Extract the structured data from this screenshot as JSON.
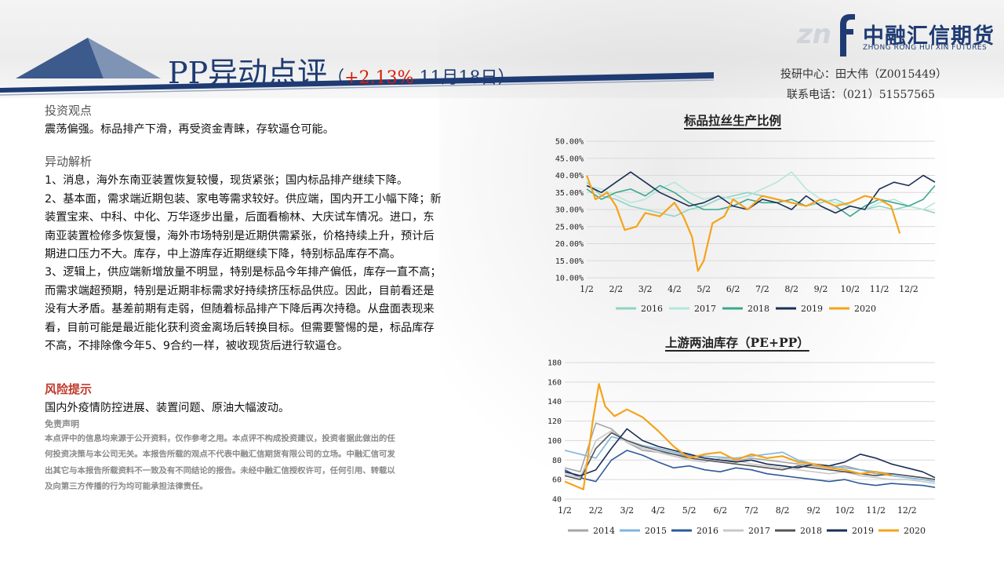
{
  "header": {
    "title_main": "PP异动点评",
    "paren_open": "（",
    "change": "+2.13%",
    "date": "11月18日",
    "paren_close": "）",
    "logo_text": "中融汇信期货",
    "logo_sub": "ZHONG RONG HUI XIN FUTURES",
    "logo_mark": "zn",
    "contact_line1": "投研中心：田大伟（Z0015449）",
    "contact_line2": "联系电话：（021）51557565"
  },
  "colors": {
    "brand": "#1f3b73",
    "accent": "#d81e06",
    "risk": "#c0392b"
  },
  "left": {
    "view_title": "投资观点",
    "view_text": "震荡偏强。标品排产下滑，再受资金青睐，存软逼仓可能。",
    "analysis_title": "异动解析",
    "analysis_lines": [
      "1、消息，海外东南亚装置恢复较慢，现货紧张；国内标品排产继续下降。",
      "2、基本面，需求端近期包装、家电等需求较好。供应端，国内开工小幅下降；新",
      "装置宝来、中科、中化、万华逐步出量，后面看榆林、大庆试车情况。进口，东",
      "南亚装置检修多恢复慢，海外市场特别是近期供需紧张，价格持续上升，预计后",
      "期进口压力不大。库存，中上游库存近期继续下降，特别标品库存不高。",
      "3、逻辑上，供应端新增放量不明显，特别是标品今年排产偏低，库存一直不高；",
      "而需求端超预期，特别是近期非标需求好持续挤压标品供应。因此，目前看还是",
      "没有大矛盾。基差前期有走弱，但随着标品排产下降后再次持稳。从盘面表现来",
      "看，目前可能是最近能化获利资金离场后转换目标。但需要警惕的是，标品库存",
      "不高，不排除像今年5、9合约一样，被收现货后进行软逼仓。"
    ],
    "risk_title": "风险提示",
    "risk_text": "国内外疫情防控进展、装置问题、原油大幅波动。",
    "disclaimer_title": "免责声明",
    "disclaimer_lines": [
      "本点评中的信息均来源于公开资料，仅作参考之用。本点评不构成投资建议，投资者据此做出的任",
      "何投资决策与本公司无关。本报告所载的观点不代表中融汇信期货有限公司的立场。中融汇信可发",
      "出其它与本报告所载资料不一致及有不同结论的报告。未经中融汇信授权许可，任何引用、转载以",
      "及向第三方传播的行为均可能承担法律责任。"
    ]
  },
  "chart_data": [
    {
      "type": "line",
      "title": "标品拉丝生产比例",
      "yticks": [
        "10.00%",
        "15.00%",
        "20.00%",
        "25.00%",
        "30.00%",
        "35.00%",
        "40.00%",
        "45.00%",
        "50.00%"
      ],
      "ylim": [
        10,
        50
      ],
      "xticks": [
        "1/2",
        "2/2",
        "3/2",
        "4/2",
        "5/2",
        "6/2",
        "7/2",
        "8/2",
        "9/2",
        "10/2",
        "11/2",
        "12/2"
      ],
      "xlim": [
        1,
        12.9
      ],
      "grid": true,
      "legend_position": "bottom",
      "series": [
        {
          "name": "2016",
          "color": "#8fd3c4",
          "x": [
            1,
            1.5,
            2,
            2.5,
            3,
            3.5,
            4,
            4.5,
            5,
            5.5,
            6,
            6.5,
            7,
            7.5,
            8,
            8.5,
            9,
            9.5,
            10,
            10.5,
            11,
            11.5,
            12,
            12.5,
            12.9
          ],
          "values": [
            38,
            34,
            33,
            31,
            30,
            29,
            28,
            30,
            31,
            33,
            34,
            35,
            34,
            33,
            32,
            31,
            32,
            33,
            31,
            30,
            31,
            30,
            31,
            30,
            29
          ]
        },
        {
          "name": "2017",
          "color": "#b6e6dc",
          "x": [
            1,
            1.5,
            2,
            2.5,
            3,
            3.5,
            4,
            4.5,
            5,
            5.5,
            6,
            6.5,
            7,
            7.5,
            8,
            8.5,
            9,
            9.5,
            10,
            10.5,
            11,
            11.5,
            12,
            12.5,
            12.9
          ],
          "values": [
            37,
            36,
            34,
            32,
            33,
            36,
            38,
            35,
            33,
            34,
            33,
            34,
            36,
            38,
            41,
            36,
            33,
            32,
            31,
            30,
            32,
            33,
            31,
            30,
            32
          ]
        },
        {
          "name": "2018",
          "color": "#3aa88f",
          "x": [
            1,
            1.5,
            2,
            2.5,
            3,
            3.5,
            4,
            4.5,
            5,
            5.5,
            6,
            6.5,
            7,
            7.5,
            8,
            8.5,
            9,
            9.5,
            10,
            10.5,
            11,
            11.5,
            12,
            12.5,
            12.9
          ],
          "values": [
            36,
            33,
            35,
            36,
            34,
            37,
            35,
            32,
            30,
            30,
            31,
            33,
            32,
            32,
            33,
            31,
            33,
            31,
            28,
            31,
            33,
            32,
            31,
            33,
            37
          ]
        },
        {
          "name": "2019",
          "color": "#1b2f55",
          "x": [
            1,
            1.5,
            2,
            2.5,
            3,
            3.5,
            4,
            4.5,
            5,
            5.5,
            6,
            6.5,
            7,
            7.5,
            8,
            8.5,
            9,
            9.5,
            10,
            10.5,
            11,
            11.5,
            12,
            12.5,
            12.9
          ],
          "values": [
            37,
            35,
            38,
            41,
            38,
            35,
            33,
            31,
            32,
            34,
            31,
            30,
            33,
            32,
            30,
            34,
            31,
            29,
            31,
            30,
            36,
            38,
            37,
            40,
            38
          ]
        },
        {
          "name": "2020",
          "color": "#f5a31a",
          "x": [
            1,
            1.3,
            1.7,
            2,
            2.3,
            2.7,
            3,
            3.5,
            4,
            4.3,
            4.6,
            4.8,
            5,
            5.3,
            5.7,
            6,
            6.5,
            7,
            7.5,
            8,
            8.5,
            9,
            9.5,
            10,
            10.5,
            11,
            11.4,
            11.7
          ],
          "values": [
            40,
            33,
            35,
            31,
            24,
            25,
            29,
            28,
            32,
            28,
            22,
            12,
            15,
            26,
            28,
            33,
            30,
            34,
            33,
            32,
            31,
            33,
            31,
            32,
            34,
            33,
            31,
            23
          ]
        }
      ]
    },
    {
      "type": "line",
      "title": "上游两油库存（PE+PP）",
      "yticks": [
        "40",
        "60",
        "80",
        "100",
        "120",
        "140",
        "160",
        "180"
      ],
      "ylim": [
        40,
        180
      ],
      "xticks": [
        "1/2",
        "2/2",
        "3/2",
        "4/2",
        "5/2",
        "6/2",
        "7/2",
        "8/2",
        "9/2",
        "10/2",
        "11/2",
        "12/2"
      ],
      "xlim": [
        1,
        12.9
      ],
      "grid": true,
      "legend_position": "bottom",
      "series": [
        {
          "name": "2014",
          "color": "#a6a6a6",
          "x": [
            1,
            1.5,
            2,
            2.5,
            3,
            3.5,
            4,
            4.5,
            5,
            5.5,
            6,
            6.5,
            7,
            7.5,
            8,
            8.5,
            9,
            9.5,
            10,
            10.5,
            11,
            11.5,
            12,
            12.5,
            12.9
          ],
          "values": [
            72,
            68,
            118,
            112,
            98,
            90,
            88,
            86,
            84,
            82,
            80,
            79,
            82,
            80,
            78,
            76,
            74,
            72,
            74,
            70,
            68,
            66,
            64,
            62,
            60
          ]
        },
        {
          "name": "2015",
          "color": "#7fb6dc",
          "x": [
            1,
            1.5,
            2,
            2.5,
            3,
            3.5,
            4,
            4.5,
            5,
            5.5,
            6,
            6.5,
            7,
            7.5,
            8,
            8.5,
            9,
            9.5,
            10,
            10.5,
            11,
            11.5,
            12,
            12.5,
            12.9
          ],
          "values": [
            90,
            86,
            82,
            104,
            100,
            95,
            92,
            88,
            85,
            84,
            83,
            82,
            84,
            86,
            88,
            80,
            76,
            74,
            72,
            70,
            66,
            64,
            62,
            60,
            58
          ]
        },
        {
          "name": "2016",
          "color": "#2e5a9a",
          "x": [
            1,
            1.5,
            2,
            2.5,
            3,
            3.5,
            4,
            4.5,
            5,
            5.5,
            6,
            6.5,
            7,
            7.5,
            8,
            8.5,
            9,
            9.5,
            10,
            10.5,
            11,
            11.5,
            12,
            12.5,
            12.9
          ],
          "values": [
            70,
            62,
            58,
            80,
            90,
            85,
            78,
            72,
            74,
            70,
            68,
            72,
            70,
            66,
            64,
            62,
            60,
            58,
            60,
            56,
            54,
            56,
            55,
            54,
            52
          ]
        },
        {
          "name": "2017",
          "color": "#c8c8c8",
          "x": [
            1,
            1.5,
            2,
            2.5,
            3,
            3.5,
            4,
            4.5,
            5,
            5.5,
            6,
            6.5,
            7,
            7.5,
            8,
            8.5,
            9,
            9.5,
            10,
            10.5,
            11,
            11.5,
            12,
            12.5,
            12.9
          ],
          "values": [
            66,
            62,
            100,
            110,
            98,
            92,
            88,
            84,
            80,
            78,
            82,
            80,
            76,
            74,
            72,
            70,
            68,
            66,
            68,
            64,
            62,
            60,
            60,
            58,
            56
          ]
        },
        {
          "name": "2018",
          "color": "#555555",
          "x": [
            1,
            1.5,
            2,
            2.5,
            3,
            3.5,
            4,
            4.5,
            5,
            5.5,
            6,
            6.5,
            7,
            7.5,
            8,
            8.5,
            9,
            9.5,
            10,
            10.5,
            11,
            11.5,
            12,
            12.5,
            12.9
          ],
          "values": [
            64,
            60,
            92,
            108,
            100,
            94,
            90,
            86,
            82,
            80,
            78,
            76,
            74,
            72,
            70,
            74,
            72,
            70,
            68,
            66,
            64,
            66,
            64,
            62,
            60
          ]
        },
        {
          "name": "2019",
          "color": "#1b2f55",
          "x": [
            1,
            1.5,
            2,
            2.5,
            3,
            3.5,
            4,
            4.5,
            5,
            5.5,
            6,
            6.5,
            7,
            7.5,
            8,
            8.5,
            9,
            9.5,
            10,
            10.5,
            11,
            11.5,
            12,
            12.5,
            12.9
          ],
          "values": [
            68,
            64,
            70,
            92,
            112,
            100,
            94,
            90,
            86,
            82,
            80,
            78,
            80,
            76,
            74,
            72,
            76,
            74,
            78,
            86,
            82,
            76,
            72,
            68,
            62
          ]
        },
        {
          "name": "2020",
          "color": "#f5a31a",
          "x": [
            1,
            1.3,
            1.6,
            1.9,
            2.1,
            2.3,
            2.6,
            3,
            3.5,
            4,
            4.5,
            5,
            5.5,
            6,
            6.5,
            7,
            7.5,
            8,
            8.5,
            9,
            9.5,
            10,
            10.5,
            11,
            11.5
          ],
          "values": [
            58,
            54,
            50,
            120,
            158,
            135,
            125,
            132,
            124,
            110,
            94,
            82,
            86,
            88,
            80,
            86,
            82,
            84,
            78,
            76,
            72,
            70,
            66,
            68,
            64
          ]
        }
      ]
    }
  ]
}
